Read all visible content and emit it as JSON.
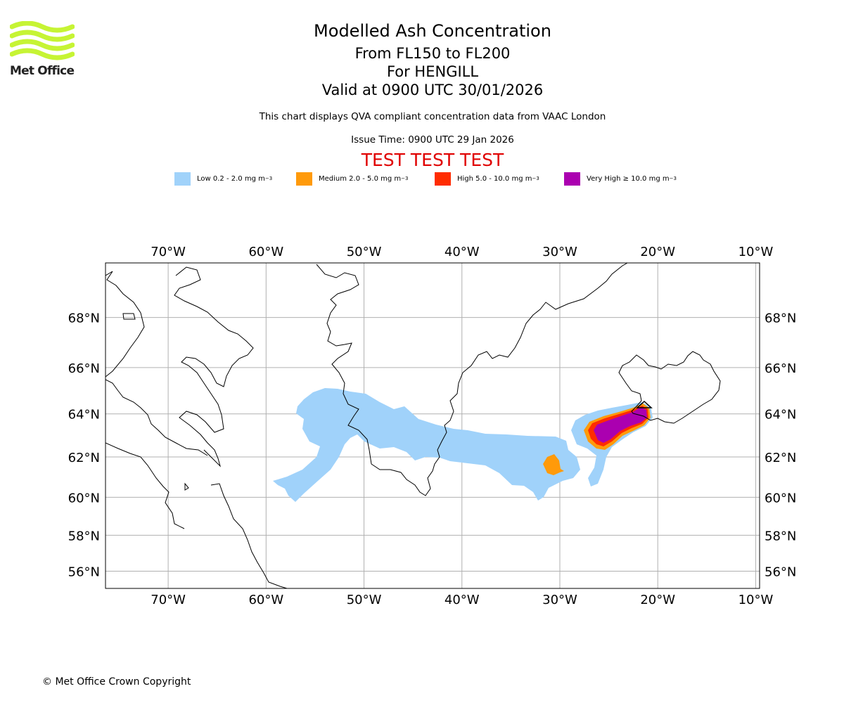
{
  "logo": {
    "text": "Met Office",
    "icon": "met-office-waves-icon",
    "color": "#c6f434"
  },
  "header": {
    "title": "Modelled Ash Concentration",
    "flight_levels": "From FL150 to FL200",
    "volcano": "For HENGILL",
    "valid_time": "Valid at 0900 UTC 30/01/2026",
    "description": "This chart displays QVA compliant concentration data from VAAC London",
    "issue_time": "Issue Time: 0900 UTC 29 Jan 2026",
    "test_banner": "TEST TEST TEST"
  },
  "legend": [
    {
      "label": "Low 0.2 - 2.0 mg m",
      "unit_exp": "−3",
      "color": "#a0d2fa"
    },
    {
      "label": "Medium 2.0 - 5.0 mg m",
      "unit_exp": "−3",
      "color": "#ff9a0a"
    },
    {
      "label": "High 5.0 - 10.0 mg m",
      "unit_exp": "−3",
      "color": "#ff2c00"
    },
    {
      "label": "Very High  ≥  10.0 mg m",
      "unit_exp": "−3",
      "color": "#ab00b0"
    }
  ],
  "map": {
    "lon_labels": [
      "70°W",
      "60°W",
      "50°W",
      "40°W",
      "30°W",
      "20°W",
      "10°W"
    ],
    "lon_values": [
      -70,
      -60,
      -50,
      -40,
      -30,
      -20,
      -10
    ],
    "lat_labels": [
      "68°N",
      "66°N",
      "64°N",
      "62°N",
      "60°N",
      "58°N",
      "56°N"
    ],
    "lat_values": [
      68,
      66,
      64,
      62,
      60,
      58,
      56
    ],
    "lon_range": [
      -76.4,
      -9.6
    ],
    "lat_range": [
      55,
      70
    ],
    "volcano_marker": "volcano-triangle-icon"
  },
  "footer": {
    "copyright": "© Met Office Crown Copyright"
  }
}
